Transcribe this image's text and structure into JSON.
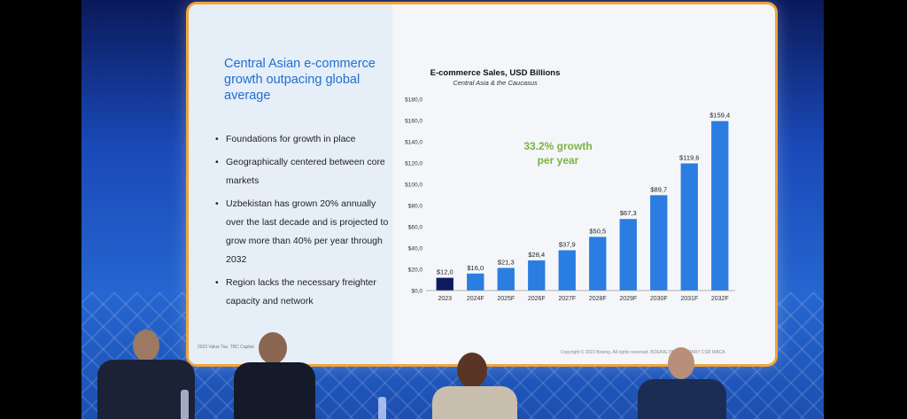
{
  "slide": {
    "title": "Central Asian e-commerce growth outpacing global average",
    "bullets": [
      "Foundations for growth in place",
      "Geographically centered between core markets",
      "Uzbekistan has grown 20% annually over the last decade and is projected to grow more than 40% per year through 2032",
      "Region lacks the necessary freighter capacity and network"
    ],
    "footer_left": "2022 Value Tax, TBC Capital",
    "footer_right": "Copyright © 2023 Boeing. All rights reserved.   BOEING PROPRIETARY   CSR WACA"
  },
  "chart_data": {
    "type": "bar",
    "title": "E-commerce Sales, USD Billions",
    "subtitle": "Central Asia & the Caucasus",
    "annotation": "33.2% growth per year",
    "categories": [
      "2023",
      "2024F",
      "2025F",
      "2026F",
      "2027F",
      "2028F",
      "2029F",
      "2030F",
      "2031F",
      "2032F"
    ],
    "values": [
      12.0,
      16.0,
      21.3,
      28.4,
      37.9,
      50.5,
      67.3,
      89.7,
      119.6,
      159.4
    ],
    "value_labels": [
      "$12,0",
      "$16,0",
      "$21,3",
      "$28,4",
      "$37,9",
      "$50,5",
      "$67,3",
      "$89,7",
      "$119,6",
      "$159,4"
    ],
    "ylim": [
      0,
      180
    ],
    "yticks": [
      0,
      20,
      40,
      60,
      80,
      100,
      120,
      140,
      160,
      180
    ],
    "ytick_labels": [
      "$0,0",
      "$20,0",
      "$40,0",
      "$60,0",
      "$80,0",
      "$100,0",
      "$120,0",
      "$140,0",
      "$160,0",
      "$180,0"
    ],
    "grid": false,
    "colors": {
      "first_bar": "#0d1b5e",
      "bar": "#2a7de1",
      "annotation": "#7cb342",
      "title": "#111111"
    }
  }
}
